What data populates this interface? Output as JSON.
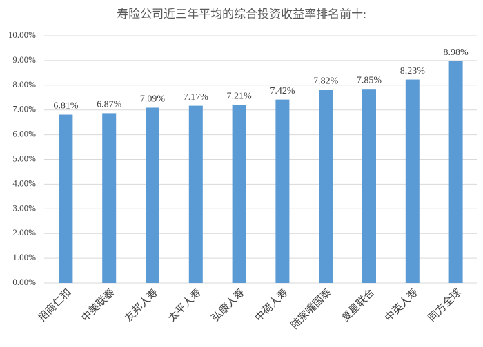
{
  "chart_data": {
    "type": "bar",
    "title": "寿险公司近三年平均的综合投资收益率排名前十:",
    "categories": [
      "招商仁和",
      "中美联泰",
      "友邦人寿",
      "太平人寿",
      "弘康人寿",
      "中荷人寿",
      "陆家嘴国泰",
      "复星联合",
      "中英人寿",
      "同方全球"
    ],
    "values": [
      6.81,
      6.87,
      7.09,
      7.17,
      7.21,
      7.42,
      7.82,
      7.85,
      8.23,
      8.98
    ],
    "value_labels": [
      "6.81%",
      "6.87%",
      "7.09%",
      "7.17%",
      "7.21%",
      "7.42%",
      "7.82%",
      "7.85%",
      "8.23%",
      "8.98%"
    ],
    "color": "#5b9bd5",
    "ylim": [
      0,
      10
    ],
    "yticks": [
      {
        "value": 0,
        "label": "0.00%"
      },
      {
        "value": 1,
        "label": "1.00%"
      },
      {
        "value": 2,
        "label": "2.00%"
      },
      {
        "value": 3,
        "label": "3.00%"
      },
      {
        "value": 4,
        "label": "4.00%"
      },
      {
        "value": 5,
        "label": "5.00%"
      },
      {
        "value": 6,
        "label": "6.00%"
      },
      {
        "value": 7,
        "label": "7.00%"
      },
      {
        "value": 8,
        "label": "8.00%"
      },
      {
        "value": 9,
        "label": "9.00%"
      },
      {
        "value": 10,
        "label": "10.00%"
      }
    ],
    "grid": true
  }
}
